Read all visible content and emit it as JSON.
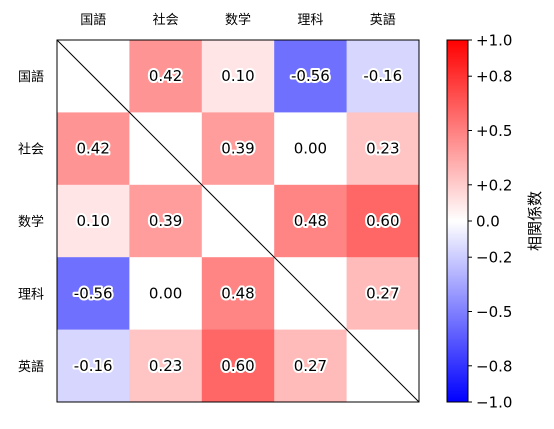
{
  "chart_data": {
    "type": "heatmap",
    "title": "",
    "x_categories": [
      "国語",
      "社会",
      "数学",
      "理科",
      "英語"
    ],
    "y_categories": [
      "国語",
      "社会",
      "数学",
      "理科",
      "英語"
    ],
    "values": [
      [
        null,
        0.42,
        0.1,
        -0.56,
        -0.16
      ],
      [
        0.42,
        null,
        0.39,
        0.0,
        0.23
      ],
      [
        0.1,
        0.39,
        null,
        0.48,
        0.6
      ],
      [
        -0.56,
        0.0,
        0.48,
        null,
        0.27
      ],
      [
        -0.16,
        0.23,
        0.6,
        0.27,
        null
      ]
    ],
    "value_labels": [
      [
        "",
        "0.42",
        "0.10",
        "-0.56",
        "-0.16"
      ],
      [
        "0.42",
        "",
        "0.39",
        "0.00",
        "0.23"
      ],
      [
        "0.10",
        "0.39",
        "",
        "0.48",
        "0.60"
      ],
      [
        "-0.56",
        "0.00",
        "0.48",
        "",
        "0.27"
      ],
      [
        "-0.16",
        "0.23",
        "0.60",
        "0.27",
        ""
      ]
    ],
    "diagonal_line": true,
    "colorbar": {
      "label": "相関係数",
      "vmin": -1.0,
      "vmax": 1.0,
      "colormap": "bwr",
      "ticks": [
        1.0,
        0.8,
        0.5,
        0.2,
        0.0,
        -0.2,
        -0.5,
        -0.8,
        -1.0
      ],
      "tick_labels": [
        "+1.0",
        "+0.8",
        "+0.5",
        "+0.2",
        "0.0",
        "−0.2",
        "−0.5",
        "−0.8",
        "−1.0"
      ]
    }
  }
}
